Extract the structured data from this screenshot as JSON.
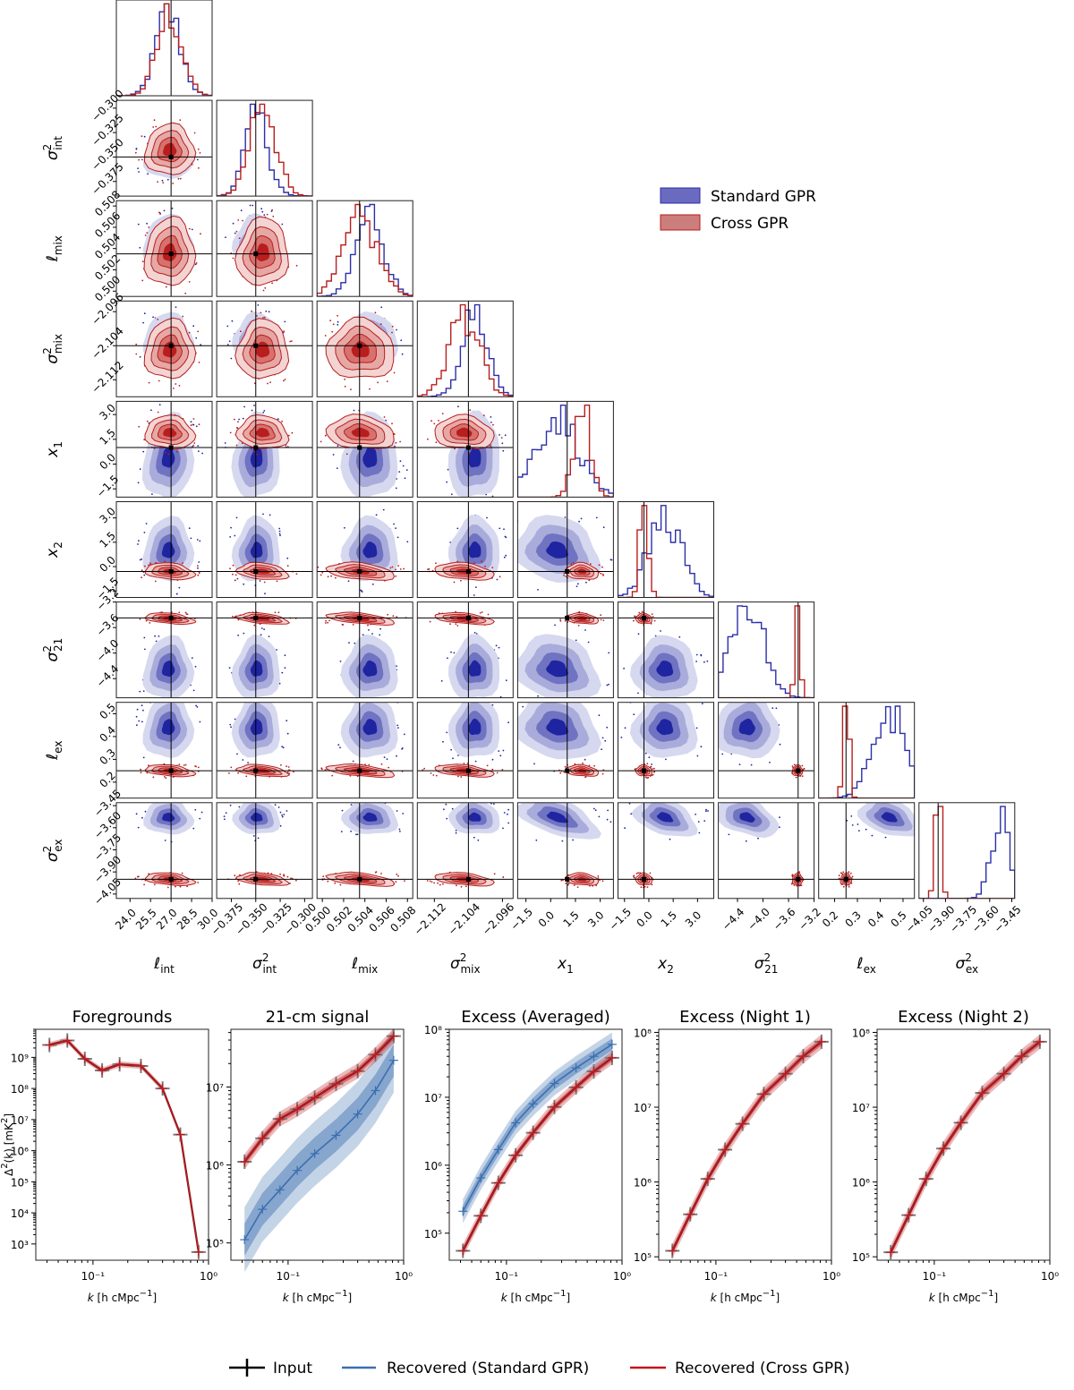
{
  "colors": {
    "standard": "#2b2fa8",
    "cross": "#b81e1e",
    "standard_ps": "#3b6fb0",
    "cross_ps": "#c0161c",
    "input": "#000000"
  },
  "corner_legend": {
    "standard": "Standard GPR",
    "cross": "Cross GPR"
  },
  "corner_params": [
    {
      "label": "ℓ_int",
      "base": "ℓ",
      "sub": "int",
      "sup": "",
      "truth": 27.0,
      "range": [
        23.0,
        30.0
      ],
      "ticks": [
        "24.0",
        "25.5",
        "27.0",
        "28.5",
        "30.0"
      ],
      "tickvals": [
        24.0,
        25.5,
        27.0,
        28.5,
        30.0
      ]
    },
    {
      "label": "σ²_int",
      "base": "σ",
      "sub": "int",
      "sup": "2",
      "truth": -0.35,
      "range": [
        -0.39,
        -0.292
      ],
      "ticks": [
        "−0.375",
        "−0.350",
        "−0.325",
        "−0.300"
      ],
      "tickvals": [
        -0.375,
        -0.35,
        -0.325,
        -0.3
      ]
    },
    {
      "label": "ℓ_mix",
      "base": "ℓ",
      "sub": "mix",
      "sup": "",
      "truth": 0.5035,
      "range": [
        0.4995,
        0.5085
      ],
      "ticks": [
        "0.500",
        "0.502",
        "0.504",
        "0.506",
        "0.508"
      ],
      "tickvals": [
        0.5,
        0.502,
        0.504,
        0.506,
        0.508
      ]
    },
    {
      "label": "σ²_mix",
      "base": "σ",
      "sub": "mix",
      "sup": "2",
      "truth": -2.104,
      "range": [
        -2.116,
        -2.0935
      ],
      "ticks": [
        "−2.112",
        "−2.104",
        "−2.096"
      ],
      "tickvals": [
        -2.112,
        -2.104,
        -2.096
      ]
    },
    {
      "label": "x_1",
      "base": "x",
      "sub": "1",
      "sup": "",
      "truth": 1.0,
      "range": [
        -2.0,
        3.8
      ],
      "ticks": [
        "−1.5",
        "0.0",
        "1.5",
        "3.0"
      ],
      "tickvals": [
        -1.5,
        0,
        1.5,
        3.0
      ]
    },
    {
      "label": "x_2",
      "base": "x",
      "sub": "2",
      "sup": "",
      "truth": -0.3,
      "range": [
        -1.9,
        4.0
      ],
      "ticks": [
        "−1.5",
        "0.0",
        "1.5",
        "3.0"
      ],
      "tickvals": [
        -1.5,
        0,
        1.5,
        3.0
      ]
    },
    {
      "label": "σ²_21",
      "base": "σ",
      "sub": "21",
      "sup": "2",
      "truth": -3.45,
      "range": [
        -4.7,
        -3.2
      ],
      "ticks": [
        "−4.4",
        "−4.0",
        "−3.6",
        "−3.2"
      ],
      "tickvals": [
        -4.4,
        -4.0,
        -3.6,
        -3.2
      ]
    },
    {
      "label": "ℓ_ex",
      "base": "ℓ",
      "sub": "ex",
      "sup": "",
      "truth": 0.25,
      "range": [
        0.13,
        0.55
      ],
      "ticks": [
        "0.2",
        "0.3",
        "0.4",
        "0.5"
      ],
      "tickvals": [
        0.2,
        0.3,
        0.4,
        0.5
      ]
    },
    {
      "label": "σ²_ex",
      "base": "σ",
      "sub": "ex",
      "sup": "2",
      "truth": -3.95,
      "range": [
        -4.08,
        -3.43
      ],
      "ticks": [
        "−4.05",
        "−3.90",
        "−3.75",
        "−3.60",
        "−3.45"
      ],
      "tickvals": [
        -4.05,
        -3.9,
        -3.75,
        -3.6,
        -3.45
      ]
    }
  ],
  "chart_data": [
    {
      "type": "corner",
      "title": "",
      "series": [
        {
          "name": "Standard GPR",
          "means": [
            26.8,
            -0.349,
            0.5045,
            -2.1025,
            0.4,
            1.0,
            -4.25,
            0.44,
            -3.53
          ],
          "stds": [
            0.9,
            0.012,
            0.0013,
            0.003,
            1.3,
            1.0,
            0.25,
            0.07,
            0.06
          ]
        },
        {
          "name": "Cross GPR",
          "means": [
            26.9,
            -0.343,
            0.5036,
            -2.105,
            1.9,
            -0.3,
            -3.46,
            0.25,
            -3.95
          ],
          "stds": [
            0.9,
            0.013,
            0.0016,
            0.0035,
            0.5,
            0.25,
            0.04,
            0.012,
            0.02
          ]
        }
      ]
    },
    {
      "type": "line",
      "scale": "loglog",
      "title": "Foregrounds",
      "xlabel": "k [h cMpc⁻¹]",
      "ylabel": "Δ²(k) [mK²]",
      "xlim": [
        0.032,
        1.0
      ],
      "ylim": [
        300,
        8000000000
      ],
      "x": [
        0.042,
        0.06,
        0.085,
        0.12,
        0.17,
        0.26,
        0.4,
        0.57,
        0.82
      ],
      "series": [
        {
          "name": "Input",
          "values": [
            2500000000,
            3500000000,
            900000000,
            380000000,
            600000000,
            530000000,
            100000000,
            3300000,
            550
          ]
        },
        {
          "name": "Recovered (Cross GPR)",
          "values": [
            2500000000,
            3500000000,
            900000000,
            380000000,
            600000000,
            530000000,
            100000000,
            3300000,
            550
          ]
        }
      ]
    },
    {
      "type": "line",
      "scale": "loglog",
      "title": "21-cm signal",
      "xlabel": "k [h cMpc⁻¹]",
      "ylabel": "",
      "xlim": [
        0.032,
        1.0
      ],
      "ylim": [
        60000,
        55000000
      ],
      "x": [
        0.042,
        0.06,
        0.085,
        0.12,
        0.17,
        0.26,
        0.4,
        0.57,
        0.82
      ],
      "series": [
        {
          "name": "Input",
          "values": [
            1100000,
            2200000,
            3900000,
            5200000,
            7300000,
            11000000,
            16000000,
            26000000,
            45000000
          ]
        },
        {
          "name": "Recovered (Standard GPR)",
          "values": [
            110000,
            270000,
            480000,
            850000,
            1400000,
            2400000,
            4500000,
            9000000,
            22000000
          ]
        },
        {
          "name": "Recovered (Cross GPR)",
          "values": [
            1100000,
            2200000,
            3900000,
            5200000,
            7300000,
            11000000,
            16000000,
            26000000,
            45000000
          ]
        }
      ]
    },
    {
      "type": "line",
      "scale": "loglog",
      "title": "Excess (Averaged)",
      "xlabel": "k [h cMpc⁻¹]",
      "ylabel": "",
      "xlim": [
        0.032,
        1.0
      ],
      "ylim": [
        40000,
        100000000
      ],
      "x": [
        0.042,
        0.06,
        0.085,
        0.12,
        0.17,
        0.26,
        0.4,
        0.57,
        0.82
      ],
      "series": [
        {
          "name": "Input",
          "values": [
            55000,
            180000,
            550000,
            1400000,
            3000000,
            7200000,
            14000000,
            24000000,
            38000000
          ]
        },
        {
          "name": "Recovered (Standard GPR)",
          "values": [
            210000,
            650000,
            1700000,
            4200000,
            8000000,
            16000000,
            27000000,
            40000000,
            60000000
          ]
        },
        {
          "name": "Recovered (Cross GPR)",
          "values": [
            55000,
            180000,
            550000,
            1400000,
            3000000,
            7200000,
            14000000,
            24000000,
            38000000
          ]
        }
      ]
    },
    {
      "type": "line",
      "scale": "loglog",
      "title": "Excess (Night 1)",
      "xlabel": "k [h cMpc⁻¹]",
      "ylabel": "",
      "xlim": [
        0.032,
        1.0
      ],
      "ylim": [
        90000,
        110000000
      ],
      "x": [
        0.042,
        0.06,
        0.085,
        0.12,
        0.17,
        0.26,
        0.4,
        0.57,
        0.82
      ],
      "series": [
        {
          "name": "Input",
          "values": [
            120000,
            370000,
            1100000,
            2700000,
            6000000,
            15000000,
            28000000,
            48000000,
            75000000
          ]
        },
        {
          "name": "Recovered (Cross GPR)",
          "values": [
            120000,
            370000,
            1100000,
            2700000,
            6000000,
            15000000,
            28000000,
            48000000,
            75000000
          ]
        }
      ]
    },
    {
      "type": "line",
      "scale": "loglog",
      "title": "Excess (Night 2)",
      "xlabel": "k [h cMpc⁻¹]",
      "ylabel": "",
      "xlim": [
        0.032,
        1.0
      ],
      "ylim": [
        90000,
        110000000
      ],
      "x": [
        0.042,
        0.06,
        0.085,
        0.12,
        0.17,
        0.26,
        0.4,
        0.57,
        0.82
      ],
      "series": [
        {
          "name": "Input",
          "values": [
            115000,
            360000,
            1100000,
            2800000,
            6200000,
            15500000,
            28000000,
            48000000,
            75000000
          ]
        },
        {
          "name": "Recovered (Cross GPR)",
          "values": [
            115000,
            360000,
            1100000,
            2800000,
            6200000,
            15500000,
            28000000,
            48000000,
            75000000
          ]
        }
      ]
    }
  ],
  "ps_axis": {
    "xlabel_k": "k",
    "xlabel_units": "[h cMpc",
    "xlabel_exp": "−1",
    "ylabel_main": "Δ",
    "ylabel_rest": "(k) [mK",
    "xticks": [
      "10⁻¹",
      "10⁰"
    ]
  },
  "bottom_legend": {
    "input": "Input",
    "standard": "Recovered (Standard GPR)",
    "cross": "Recovered (Cross GPR)"
  }
}
